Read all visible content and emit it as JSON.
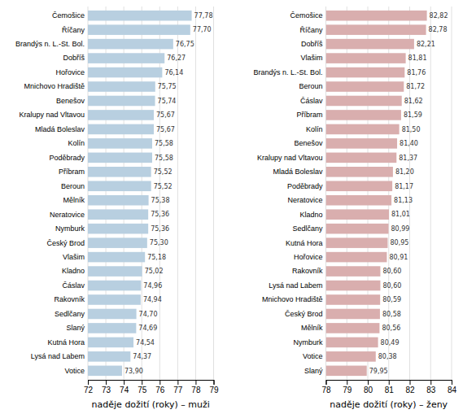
{
  "chart_data": [
    {
      "type": "bar",
      "orientation": "horizontal",
      "xlabel": "naděje dožití (roky) – muži",
      "categories": [
        "Čemošice",
        "Říčany",
        "Brandýs n. L.-St. Bol.",
        "Dobříš",
        "Hořovice",
        "Mnichovo Hradiště",
        "Benešov",
        "Kralupy nad Vltavou",
        "Mladá Boleslav",
        "Kolín",
        "Poděbrady",
        "Příbram",
        "Beroun",
        "Mělník",
        "Neratovice",
        "Nymburk",
        "Český Brod",
        "Vlašim",
        "Kladno",
        "Čáslav",
        "Rakovník",
        "Sedlčany",
        "Slaný",
        "Kutná Hora",
        "Lysá nad Labem",
        "Votice"
      ],
      "values": [
        77.78,
        77.7,
        76.75,
        76.27,
        76.14,
        75.75,
        75.74,
        75.67,
        75.67,
        75.58,
        75.58,
        75.52,
        75.52,
        75.38,
        75.36,
        75.36,
        75.3,
        75.18,
        75.02,
        74.96,
        74.94,
        74.7,
        74.69,
        74.54,
        74.37,
        73.9
      ],
      "value_labels": [
        "77,78",
        "77,70",
        "76,75",
        "76,27",
        "76,14",
        "75,75",
        "75,74",
        "75,67",
        "75,67",
        "75,58",
        "75,58",
        "75,52",
        "75,52",
        "75,38",
        "75,36",
        "75,36",
        "75,30",
        "75,18",
        "75,02",
        "74,96",
        "74,94",
        "74,70",
        "74,69",
        "74,54",
        "74,37",
        "73,90"
      ],
      "data_labels": true,
      "color": "#b8cfe0",
      "xlim": [
        72,
        79
      ],
      "xticks": [
        72,
        73,
        74,
        75,
        76,
        77,
        78,
        79
      ],
      "grid": true
    },
    {
      "type": "bar",
      "orientation": "horizontal",
      "xlabel": "naděje dožití (roky) – ženy",
      "categories": [
        "Čemošice",
        "Říčany",
        "Dobříš",
        "Vlašim",
        "Brandýs n. L.-St. Bol.",
        "Beroun",
        "Čáslav",
        "Příbram",
        "Kolín",
        "Benešov",
        "Kralupy nad Vltavou",
        "Mladá Boleslav",
        "Poděbrady",
        "Neratovice",
        "Kladno",
        "Sedlčany",
        "Kutná Hora",
        "Hořovice",
        "Rakovník",
        "Lysá nad Labem",
        "Mnichovo Hradiště",
        "Český Brod",
        "Mělník",
        "Nymburk",
        "Votice",
        "Slaný"
      ],
      "values": [
        82.82,
        82.78,
        82.21,
        81.81,
        81.76,
        81.72,
        81.62,
        81.59,
        81.5,
        81.4,
        81.37,
        81.2,
        81.17,
        81.13,
        81.01,
        80.99,
        80.95,
        80.91,
        80.6,
        80.6,
        80.59,
        80.58,
        80.56,
        80.49,
        80.38,
        79.95
      ],
      "value_labels": [
        "82,82",
        "82,78",
        "82,21",
        "81,81",
        "81,76",
        "81,72",
        "81,62",
        "81,59",
        "81,50",
        "81,40",
        "81,37",
        "81,20",
        "81,17",
        "81,13",
        "81,01",
        "80,99",
        "80,95",
        "80,91",
        "80,60",
        "80,60",
        "80,59",
        "80,58",
        "80,56",
        "80,49",
        "80,38",
        "79,95"
      ],
      "data_labels": true,
      "color": "#d9aeae",
      "xlim": [
        78,
        84
      ],
      "xticks": [
        78,
        79,
        80,
        81,
        82,
        83,
        84
      ],
      "grid": true
    }
  ]
}
